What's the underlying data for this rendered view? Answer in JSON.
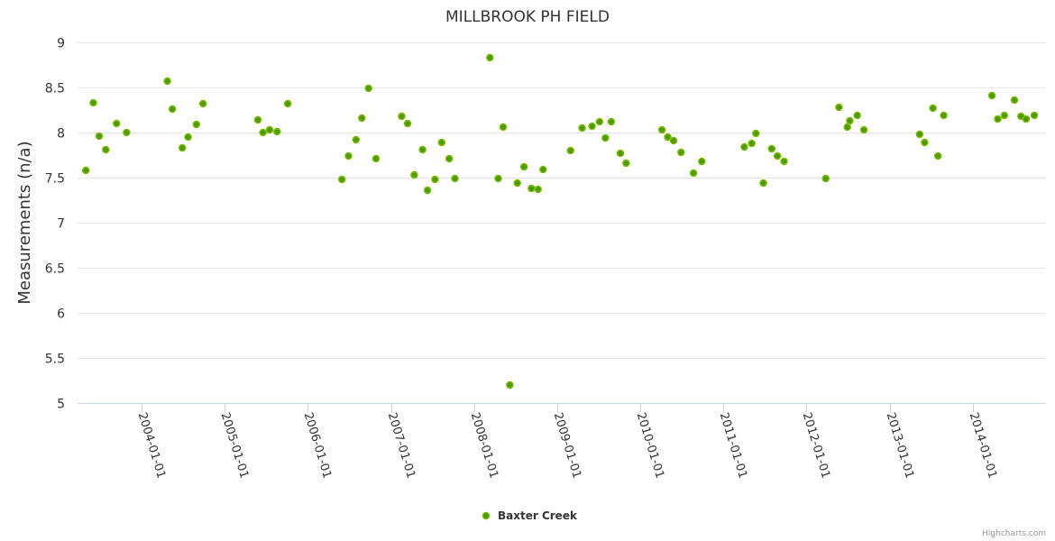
{
  "chart_data": {
    "type": "scatter",
    "title": "MILLBROOK PH FIELD",
    "xlabel": "",
    "ylabel": "Measurements (n/a)",
    "ylim": [
      5,
      9
    ],
    "yticks": [
      "5",
      "5.5",
      "6",
      "6.5",
      "7",
      "7.5",
      "8",
      "8.5",
      "9"
    ],
    "xlim": [
      2003.23,
      2014.88
    ],
    "xticks": [
      "2004-01-01",
      "2005-01-01",
      "2006-01-01",
      "2007-01-01",
      "2008-01-01",
      "2009-01-01",
      "2010-01-01",
      "2011-01-01",
      "2012-01-01",
      "2013-01-01",
      "2014-01-01"
    ],
    "grid": true,
    "legend_position": "bottom-center",
    "credits": "Highcharts.com",
    "colors": {
      "marker_fill": "#4d9a00",
      "marker_stroke": "#7cbb00",
      "grid": "#e6e6e6",
      "axis": "#ccd6eb"
    },
    "series": [
      {
        "name": "Baxter Creek",
        "x": [
          2003.33,
          2003.42,
          2003.49,
          2003.57,
          2003.7,
          2003.82,
          2004.31,
          2004.37,
          2004.49,
          2004.56,
          2004.66,
          2004.74,
          2005.4,
          2005.46,
          2005.54,
          2005.63,
          2005.76,
          2006.41,
          2006.49,
          2006.58,
          2006.65,
          2006.73,
          2006.82,
          2007.13,
          2007.2,
          2007.28,
          2007.38,
          2007.44,
          2007.53,
          2007.61,
          2007.7,
          2007.77,
          2008.19,
          2008.29,
          2008.35,
          2008.43,
          2008.52,
          2008.6,
          2008.69,
          2008.77,
          2008.83,
          2009.16,
          2009.3,
          2009.42,
          2009.51,
          2009.58,
          2009.65,
          2009.76,
          2009.83,
          2010.26,
          2010.33,
          2010.4,
          2010.49,
          2010.64,
          2010.74,
          2011.25,
          2011.34,
          2011.39,
          2011.48,
          2011.58,
          2011.65,
          2011.73,
          2012.23,
          2012.39,
          2012.49,
          2012.52,
          2012.61,
          2012.69,
          2013.36,
          2013.42,
          2013.52,
          2013.58,
          2013.65,
          2014.23,
          2014.3,
          2014.38,
          2014.5,
          2014.58,
          2014.64,
          2014.74
        ],
        "y": [
          7.58,
          8.33,
          7.96,
          7.81,
          8.1,
          8.0,
          8.57,
          8.26,
          7.83,
          7.95,
          8.09,
          8.32,
          8.14,
          8.0,
          8.03,
          8.01,
          8.32,
          7.48,
          7.74,
          7.92,
          8.16,
          8.49,
          7.71,
          8.18,
          8.1,
          7.53,
          7.81,
          7.36,
          7.48,
          7.89,
          7.71,
          7.49,
          8.83,
          7.49,
          8.06,
          5.2,
          7.44,
          7.62,
          7.38,
          7.37,
          7.59,
          7.8,
          8.05,
          8.07,
          8.12,
          7.94,
          8.12,
          7.77,
          7.66,
          8.03,
          7.95,
          7.91,
          7.78,
          7.55,
          7.68,
          7.84,
          7.88,
          7.99,
          7.44,
          7.82,
          7.74,
          7.68,
          7.49,
          8.28,
          8.06,
          8.13,
          8.19,
          8.03,
          7.98,
          7.89,
          8.27,
          7.74,
          8.19,
          8.41,
          8.15,
          8.19,
          8.36,
          8.18,
          8.15,
          8.19
        ]
      }
    ]
  }
}
